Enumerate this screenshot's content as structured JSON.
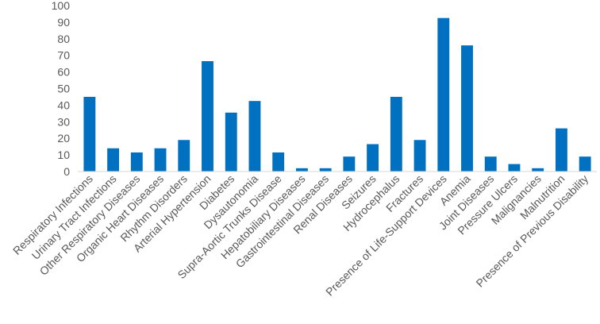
{
  "chart_data": {
    "type": "bar",
    "title": "",
    "xlabel": "",
    "ylabel": "",
    "ylim": [
      0,
      100
    ],
    "yticks": [
      0,
      10,
      20,
      30,
      40,
      50,
      60,
      70,
      80,
      90,
      100
    ],
    "grid": false,
    "bar_color": "#0070c0",
    "categories": [
      "Respiratory Infections",
      "Urinary Tract Infections",
      "Other Respiratory  Diseases",
      "Organic Heart Diseases",
      "Rhythm Disorders",
      "Arterial Hypertension",
      "Diabetes",
      "Dysautonomia",
      "Supra-Aortic Trunks Disease",
      "Hepatobiliary Diseases",
      "Gastrointestinal Diseases",
      "Renal Diseases",
      "Seizures",
      "Hydrocephalus",
      "Fractures",
      "Presence of Life-Support Devices",
      "Anemia",
      "Joint Diseases",
      "Pressure Ulcers",
      "Malignancies",
      "Malnutrition",
      "Presence of Previous Disability"
    ],
    "values": [
      45,
      14,
      11.5,
      14,
      19,
      66.5,
      35.5,
      42.5,
      11.5,
      2,
      2,
      9,
      16.5,
      45,
      19,
      92.5,
      76,
      9,
      4.5,
      2,
      26,
      9
    ]
  }
}
